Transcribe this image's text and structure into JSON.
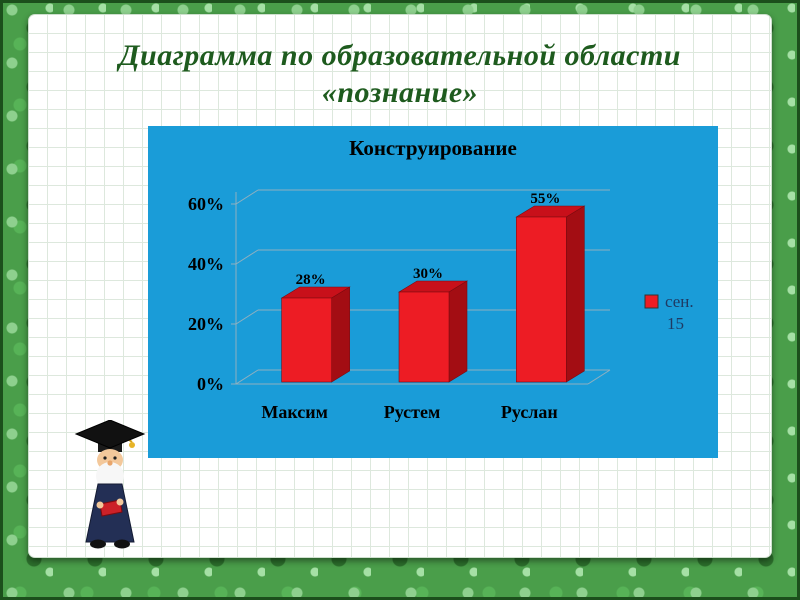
{
  "slide": {
    "title_line1": "Диаграмма по образовательной области",
    "title_line2": "«познание»"
  },
  "chart_data": {
    "type": "bar",
    "style": "3d-clustered",
    "title": "Конструирование",
    "categories": [
      "Максим",
      "Рустем",
      "Руслан"
    ],
    "series": [
      {
        "name": "сен. 15",
        "values": [
          28,
          30,
          55
        ]
      }
    ],
    "data_labels": [
      "28%",
      "30%",
      "55%"
    ],
    "y_ticks": [
      "0%",
      "20%",
      "40%",
      "60%"
    ],
    "ylim": [
      0,
      60
    ],
    "grid": true,
    "legend_position": "right",
    "legend": {
      "line1": "сен.",
      "line2": "15"
    },
    "colors": {
      "bar": "#ed1c24",
      "bar_top": "#c8101a",
      "bar_side": "#a30d13",
      "background": "#1a9cd8",
      "grid": "#8fb0c0",
      "text": "#000000",
      "legend_text": "#1f3a63"
    }
  },
  "mascot": {
    "name": "wizard-graduate-mascot"
  }
}
